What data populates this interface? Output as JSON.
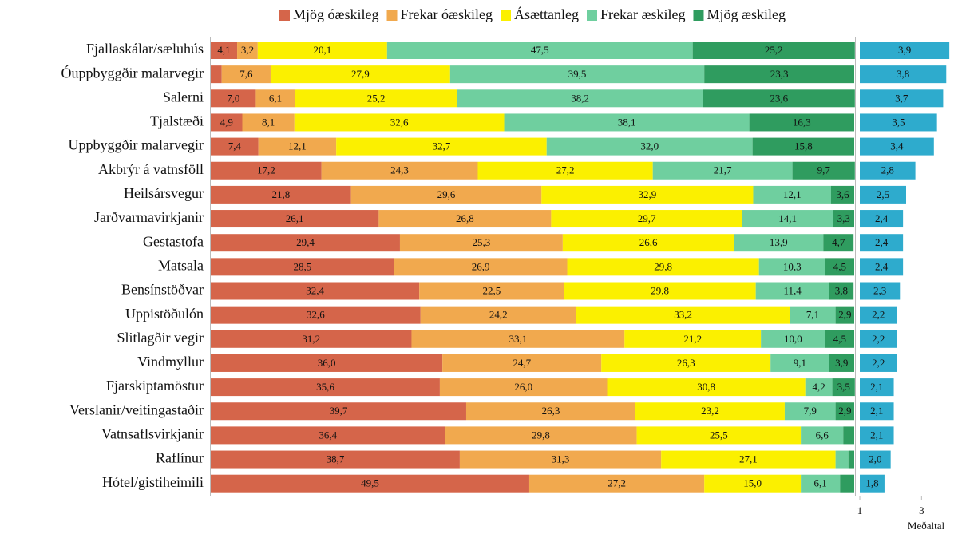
{
  "chart_data": [
    {
      "type": "stacked-bar",
      "categories": [
        "Fjallaskálar/sæluhús",
        "Óuppbyggðir malarvegir",
        "Salerni",
        "Tjalstæði",
        "Uppbyggðir malarvegir",
        "Akbrýr á vatnsföll",
        "Heilsársvegur",
        "Jarðvarmavirkjanir",
        "Gestastofa",
        "Matsala",
        "Bensínstöðvar",
        "Uppistöðulón",
        "Slitlagðir vegir",
        "Vindmyllur",
        "Fjarskiptamöstur",
        "Verslanir/veitingastaðir",
        "Vatnsaflsvirkjanir",
        "Raflínur",
        "Hótel/gistiheimili"
      ],
      "xlim": [
        0,
        100
      ],
      "series": [
        {
          "name": "Mjög óæskileg",
          "color": "#d5654a",
          "values": [
            4.1,
            1.7,
            7.0,
            4.9,
            7.4,
            17.2,
            21.8,
            26.1,
            29.4,
            28.5,
            32.4,
            32.6,
            31.2,
            36.0,
            35.6,
            39.7,
            36.4,
            38.7,
            49.5
          ],
          "value_labels": [
            "4,1",
            null,
            "7,0",
            "4,9",
            "7,4",
            "17,2",
            "21,8",
            "26,1",
            "29,4",
            "28,5",
            "32,4",
            "32,6",
            "31,2",
            "36,0",
            "35,6",
            "39,7",
            "36,4",
            "38,7",
            "49,5"
          ]
        },
        {
          "name": "Frekar óæskileg",
          "color": "#f1a94e",
          "values": [
            3.2,
            7.6,
            6.1,
            8.1,
            12.1,
            24.3,
            29.6,
            26.8,
            25.3,
            26.9,
            22.5,
            24.2,
            33.1,
            24.7,
            26.0,
            26.3,
            29.8,
            31.3,
            27.2
          ],
          "value_labels": [
            "3,2",
            "7,6",
            "6,1",
            "8,1",
            "12,1",
            "24,3",
            "29,6",
            "26,8",
            "25,3",
            "26,9",
            "22,5",
            "24,2",
            "33,1",
            "24,7",
            "26,0",
            "26,3",
            "29,8",
            "31,3",
            "27,2"
          ]
        },
        {
          "name": "Ásættanleg",
          "color": "#fbf000",
          "values": [
            20.1,
            27.9,
            25.2,
            32.6,
            32.7,
            27.2,
            32.9,
            29.7,
            26.6,
            29.8,
            29.8,
            33.2,
            21.2,
            26.3,
            30.8,
            23.2,
            25.5,
            27.1,
            15.0
          ],
          "value_labels": [
            "20,1",
            "27,9",
            "25,2",
            "32,6",
            "32,7",
            "27,2",
            "32,9",
            "29,7",
            "26,6",
            "29,8",
            "29,8",
            "33,2",
            "21,2",
            "26,3",
            "30,8",
            "23,2",
            "25,5",
            "27,1",
            "15,0"
          ]
        },
        {
          "name": "Frekar æskileg",
          "color": "#6fcf9f",
          "values": [
            47.5,
            39.5,
            38.2,
            38.1,
            32.0,
            21.7,
            12.1,
            14.1,
            13.9,
            10.3,
            11.4,
            7.1,
            10.0,
            9.1,
            4.2,
            7.9,
            6.6,
            2.0,
            6.1
          ],
          "value_labels": [
            "47,5",
            "39,5",
            "38,2",
            "38,1",
            "32,0",
            "21,7",
            "12,1",
            "14,1",
            "13,9",
            "10,3",
            "11,4",
            "7,1",
            "10,0",
            "9,1",
            "4,2",
            "7,9",
            "6,6",
            null,
            "6,1"
          ]
        },
        {
          "name": "Mjög æskileg",
          "color": "#2f9c5f",
          "values": [
            25.2,
            23.3,
            23.6,
            16.3,
            15.8,
            9.7,
            3.6,
            3.3,
            4.7,
            4.5,
            3.8,
            2.9,
            4.5,
            3.9,
            3.5,
            2.9,
            1.7,
            0.9,
            2.2
          ],
          "value_labels": [
            "25,2",
            "23,3",
            "23,6",
            "16,3",
            "15,8",
            "9,7",
            "3,6",
            "3,3",
            "4,7",
            "4,5",
            "3,8",
            "2,9",
            "4,5",
            "3,9",
            "3,5",
            "2,9",
            null,
            null,
            null
          ]
        }
      ]
    },
    {
      "type": "bar",
      "color": "#2eabcd",
      "values": [
        3.9,
        3.8,
        3.7,
        3.5,
        3.4,
        2.8,
        2.5,
        2.4,
        2.4,
        2.4,
        2.3,
        2.2,
        2.2,
        2.2,
        2.1,
        2.1,
        2.1,
        2.0,
        1.8
      ],
      "value_labels": [
        "3,9",
        "3,8",
        "3,7",
        "3,5",
        "3,4",
        "2,8",
        "2,5",
        "2,4",
        "2,4",
        "2,4",
        "2,3",
        "2,2",
        "2,2",
        "2,2",
        "2,1",
        "2,1",
        "2,1",
        "2,0",
        "1,8"
      ],
      "xlim": [
        1,
        4
      ],
      "xticks": [
        1,
        3
      ],
      "xlabel": "Meðaltal"
    }
  ]
}
